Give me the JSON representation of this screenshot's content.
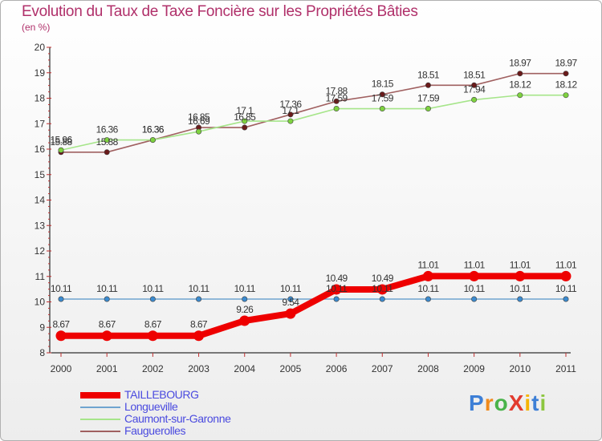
{
  "title": "Evolution du Taux de Taxe Foncière sur les Propriétés Bâties",
  "subtitle": "(en %)",
  "logo": {
    "text": "ProXiti",
    "letters": [
      "P",
      "r",
      "o",
      "X",
      "i",
      "t",
      "i"
    ],
    "colors": [
      "#3d7fd6",
      "#f08a1c",
      "#49b34a",
      "#e23b2e",
      "#f5b400",
      "#3d7fd6",
      "#8cc63f"
    ]
  },
  "chart_data": {
    "type": "line",
    "title": "Evolution du Taux de Taxe Foncière sur les Propriétés Bâties",
    "ylabel": "(en %)",
    "xlabel": "",
    "categories": [
      "2000",
      "2001",
      "2002",
      "2003",
      "2004",
      "2005",
      "2006",
      "2007",
      "2008",
      "2009",
      "2010",
      "2011"
    ],
    "ylim": [
      8,
      20
    ],
    "yticks": [
      "8",
      "9",
      "10",
      "11",
      "12",
      "13",
      "14",
      "15",
      "16",
      "17",
      "18",
      "19",
      "20"
    ],
    "series": [
      {
        "name": "TAILLEBOURG",
        "color": "#ee0000",
        "emphasis": true,
        "values": [
          8.67,
          8.67,
          8.67,
          8.67,
          9.26,
          9.54,
          10.49,
          10.49,
          11.01,
          11.01,
          11.01,
          11.01
        ],
        "labels": [
          "8.67",
          "8.67",
          "8.67",
          "8.67",
          "9.26",
          "9.54",
          "10.49",
          "10.49",
          "11.01",
          "11.01",
          "11.01",
          "11.01"
        ]
      },
      {
        "name": "Longueville",
        "color": "#6fa4cf",
        "point": "#3b8bd0",
        "values": [
          10.11,
          10.11,
          10.11,
          10.11,
          10.11,
          10.11,
          10.11,
          10.11,
          10.11,
          10.11,
          10.11,
          10.11
        ],
        "labels": [
          "10.11",
          "10.11",
          "10.11",
          "10.11",
          "10.11",
          "10.11",
          "10.11",
          "10.11",
          "10.11",
          "10.11",
          "10.11",
          "10.11"
        ]
      },
      {
        "name": "Caumont-sur-Garonne",
        "color": "#a6e58a",
        "point": "#7ed23f",
        "values": [
          15.96,
          16.36,
          16.36,
          16.69,
          17.1,
          17.1,
          17.59,
          17.59,
          17.59,
          17.94,
          18.12,
          18.12
        ],
        "labels": [
          "15.96",
          "16.36",
          "16.36",
          "16.69",
          "17.1",
          "17.1",
          "17.59",
          "17.59",
          "17.59",
          "17.94",
          "18.12",
          "18.12"
        ]
      },
      {
        "name": "Fauguerolles",
        "color": "#a06060",
        "point": "#6a1a1a",
        "values": [
          15.88,
          15.88,
          16.36,
          16.85,
          16.85,
          17.36,
          17.88,
          18.15,
          18.51,
          18.51,
          18.97,
          18.97
        ],
        "labels": [
          "15.88",
          "15.88",
          "16.36",
          "16.85",
          "16.85",
          "17.36",
          "17.88",
          "18.15",
          "18.51",
          "18.51",
          "18.97",
          "18.97"
        ]
      }
    ],
    "legend_position": "bottom-left",
    "grid": false
  }
}
